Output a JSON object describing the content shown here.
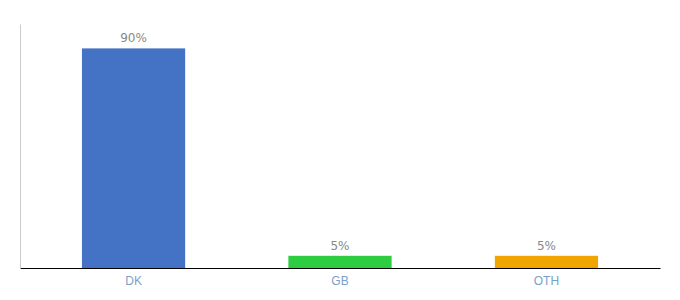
{
  "chart_data": {
    "type": "bar",
    "categories": [
      "DK",
      "GB",
      "OTH"
    ],
    "values": [
      90,
      5,
      5
    ],
    "value_labels": [
      "90%",
      "5%",
      "5%"
    ],
    "colors": [
      "#4472c4",
      "#2ecc40",
      "#f0a500"
    ],
    "ylim": [
      0,
      100
    ],
    "data_labels": true,
    "tick_labels": "x"
  }
}
